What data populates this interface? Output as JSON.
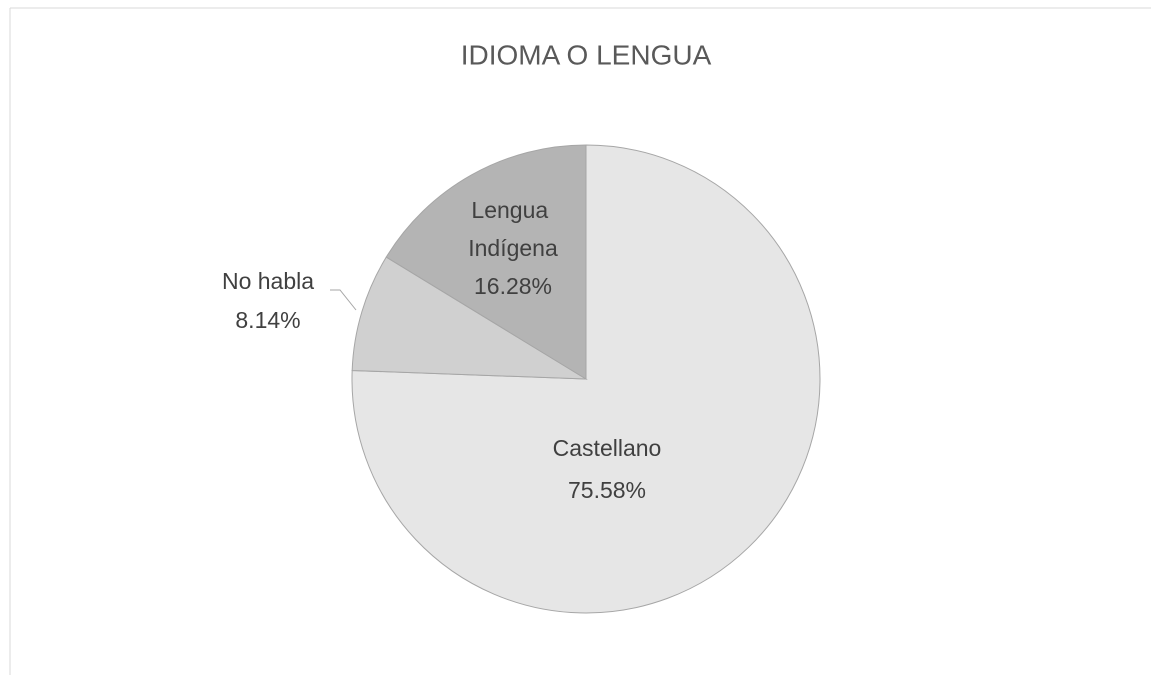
{
  "chart_data": {
    "type": "pie",
    "title": "IDIOMA O LENGUA",
    "categories": [
      "Castellano",
      "No habla",
      "Lengua Indígena"
    ],
    "values": [
      75.58,
      8.14,
      16.28
    ],
    "value_labels": [
      "75.58%",
      "8.14%",
      "16.28%"
    ],
    "colors": [
      "#e6e6e6",
      "#d0d0d0",
      "#b4b4b4"
    ]
  }
}
